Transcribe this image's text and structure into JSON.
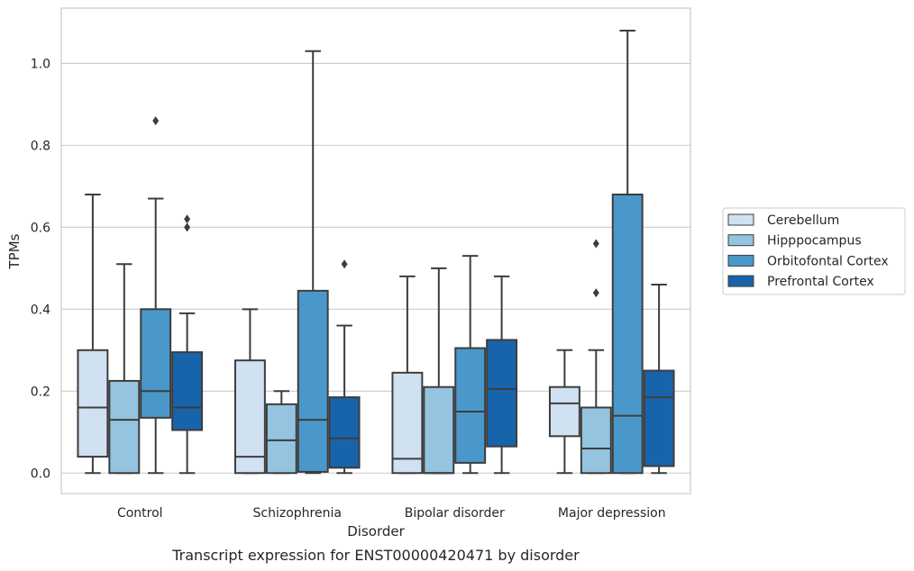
{
  "chart_data": {
    "type": "box",
    "xlabel": "Disorder",
    "ylabel": "TPMs",
    "caption": "Transcript expression for ENST00000420471 by disorder",
    "ylim": [
      -0.05,
      1.135
    ],
    "yticks": [
      "0.0",
      "0.2",
      "0.4",
      "0.6",
      "0.8",
      "1.0"
    ],
    "grid": true,
    "legend_position": "right",
    "categories": [
      "Control",
      "Schizophrenia",
      "Bipolar disorder",
      "Major depression"
    ],
    "series": [
      {
        "name": "Cerebellum",
        "color": "#d0e1f2",
        "boxes": [
          {
            "whisker_low": 0.0,
            "q1": 0.04,
            "median": 0.16,
            "q3": 0.3,
            "whisker_high": 0.68,
            "outliers": []
          },
          {
            "whisker_low": 0.0,
            "q1": 0.0,
            "median": 0.04,
            "q3": 0.275,
            "whisker_high": 0.4,
            "outliers": []
          },
          {
            "whisker_low": 0.0,
            "q1": 0.0,
            "median": 0.035,
            "q3": 0.245,
            "whisker_high": 0.48,
            "outliers": []
          },
          {
            "whisker_low": 0.0,
            "q1": 0.09,
            "median": 0.17,
            "q3": 0.21,
            "whisker_high": 0.3,
            "outliers": []
          }
        ]
      },
      {
        "name": "Hipppocampus",
        "color": "#94c4df",
        "boxes": [
          {
            "whisker_low": 0.0,
            "q1": 0.0,
            "median": 0.13,
            "q3": 0.225,
            "whisker_high": 0.51,
            "outliers": []
          },
          {
            "whisker_low": 0.0,
            "q1": 0.0,
            "median": 0.08,
            "q3": 0.168,
            "whisker_high": 0.2,
            "outliers": []
          },
          {
            "whisker_low": 0.0,
            "q1": 0.0,
            "median": 0.0,
            "q3": 0.21,
            "whisker_high": 0.5,
            "outliers": []
          },
          {
            "whisker_low": 0.0,
            "q1": 0.0,
            "median": 0.06,
            "q3": 0.16,
            "whisker_high": 0.3,
            "outliers": [
              0.44,
              0.56
            ]
          }
        ]
      },
      {
        "name": "Orbitofontal Cortex",
        "color": "#4a98c9",
        "boxes": [
          {
            "whisker_low": 0.0,
            "q1": 0.135,
            "median": 0.2,
            "q3": 0.4,
            "whisker_high": 0.67,
            "outliers": [
              0.86
            ]
          },
          {
            "whisker_low": 0.0,
            "q1": 0.003,
            "median": 0.13,
            "q3": 0.445,
            "whisker_high": 1.03,
            "outliers": []
          },
          {
            "whisker_low": 0.0,
            "q1": 0.025,
            "median": 0.15,
            "q3": 0.305,
            "whisker_high": 0.53,
            "outliers": []
          },
          {
            "whisker_low": 0.0,
            "q1": 0.0,
            "median": 0.14,
            "q3": 0.68,
            "whisker_high": 1.08,
            "outliers": []
          }
        ]
      },
      {
        "name": "Prefrontal Cortex",
        "color": "#1764ab",
        "boxes": [
          {
            "whisker_low": 0.0,
            "q1": 0.105,
            "median": 0.16,
            "q3": 0.295,
            "whisker_high": 0.39,
            "outliers": [
              0.6,
              0.62
            ]
          },
          {
            "whisker_low": 0.0,
            "q1": 0.013,
            "median": 0.085,
            "q3": 0.185,
            "whisker_high": 0.36,
            "outliers": [
              0.51
            ]
          },
          {
            "whisker_low": 0.0,
            "q1": 0.065,
            "median": 0.205,
            "q3": 0.325,
            "whisker_high": 0.48,
            "outliers": []
          },
          {
            "whisker_low": 0.0,
            "q1": 0.017,
            "median": 0.185,
            "q3": 0.25,
            "whisker_high": 0.46,
            "outliers": []
          }
        ]
      }
    ]
  }
}
